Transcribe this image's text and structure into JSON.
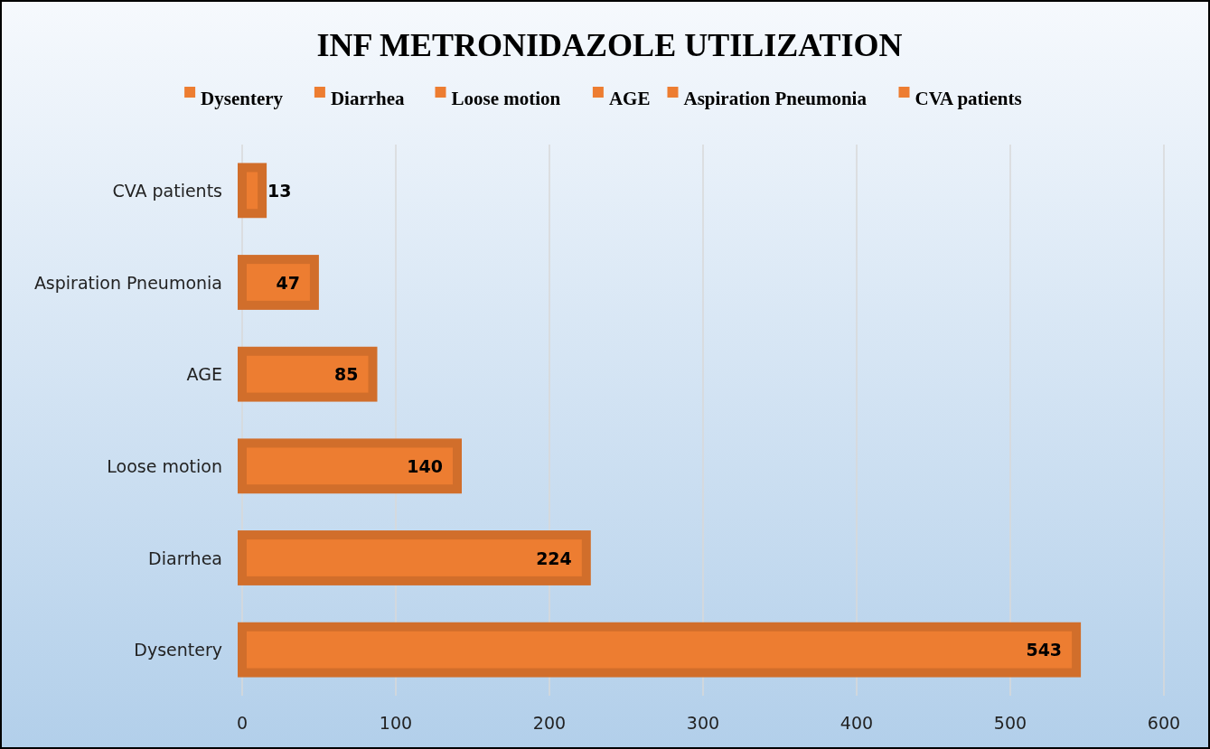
{
  "chart_data": {
    "type": "bar",
    "orientation": "horizontal",
    "title": "INF METRONIDAZOLE UTILIZATION",
    "categories": [
      "CVA patients",
      "Aspiration Pneumonia",
      "AGE",
      "Loose motion",
      "Diarrhea",
      "Dysentery"
    ],
    "values": [
      13,
      47,
      85,
      140,
      224,
      543
    ],
    "colors": [
      "#ed7d31",
      "#ed7d31",
      "#ed7d31",
      "#ed7d31",
      "#ed7d31",
      "#ed7d31"
    ],
    "xlim": [
      0,
      600
    ],
    "xticks": [
      0,
      100,
      200,
      300,
      400,
      500,
      600
    ],
    "grid": "x",
    "data_labels": true
  }
}
